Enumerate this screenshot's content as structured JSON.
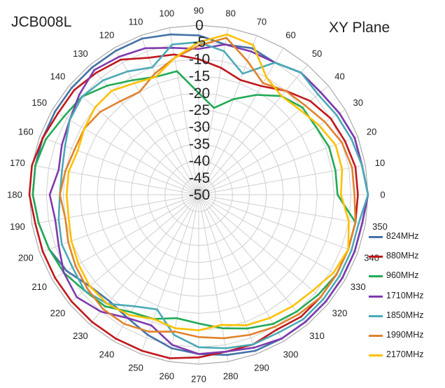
{
  "chart_data": {
    "type": "polar-line",
    "title_left": "JCB008L",
    "title_right": "XY  Plane",
    "radial_axis": {
      "min": -50,
      "max": 0,
      "ticks": [
        "0",
        "-5",
        "-10",
        "-15",
        "-20",
        "-25",
        "-30",
        "-35",
        "-40",
        "-45",
        "-50"
      ]
    },
    "angular_ticks": [
      "0",
      "10",
      "20",
      "30",
      "40",
      "50",
      "60",
      "70",
      "80",
      "90",
      "100",
      "110",
      "120",
      "130",
      "140",
      "150",
      "160",
      "170",
      "180",
      "190",
      "200",
      "210",
      "220",
      "230",
      "240",
      "250",
      "260",
      "270",
      "280",
      "290",
      "300",
      "310",
      "320",
      "330",
      "340",
      "350"
    ],
    "angles": [
      0,
      10,
      20,
      30,
      40,
      50,
      60,
      70,
      80,
      90,
      100,
      110,
      120,
      130,
      140,
      150,
      160,
      170,
      180,
      190,
      200,
      210,
      220,
      230,
      240,
      250,
      260,
      270,
      280,
      290,
      300,
      310,
      320,
      330,
      340,
      350
    ],
    "grid": true,
    "legend_position": "bottom-right",
    "series": [
      {
        "name": "824MHz",
        "color": "#4572A7",
        "values": [
          0,
          -1,
          -1,
          -2,
          -3,
          -3,
          -5,
          -4,
          -5,
          -3,
          -2,
          -1,
          -1,
          -1,
          -1,
          -1,
          -1,
          -1,
          -1,
          -2,
          -3,
          -5,
          -8,
          -9,
          -8,
          -6,
          -4,
          -3,
          -2,
          -1,
          -1,
          -1,
          -1,
          -1,
          -1,
          -1
        ]
      },
      {
        "name": "880MHz",
        "color": "#C0181C",
        "values": [
          -3,
          -3,
          -4,
          -5,
          -7,
          -10,
          -13,
          -14,
          -12,
          -10,
          -8,
          -7,
          -4,
          -3,
          -2,
          -2,
          -1,
          0,
          0,
          -1,
          -1,
          -1,
          -1,
          -1,
          -1,
          -1,
          -1,
          -2,
          -3,
          -3,
          -4,
          -3,
          -3,
          -3,
          -3,
          -3
        ]
      },
      {
        "name": "960MHz",
        "color": "#22AA55",
        "values": [
          -9,
          -9,
          -9,
          -10,
          -10,
          -12,
          -16,
          -20,
          -24,
          -20,
          -13,
          -13,
          -11,
          -8,
          -5,
          -4,
          -2,
          -1,
          -1,
          -2,
          -3,
          -4,
          -6,
          -7,
          -10,
          -11,
          -13,
          -12,
          -10,
          -8,
          -6,
          -5,
          -4,
          -3,
          -3,
          -3
        ]
      },
      {
        "name": "1710MHz",
        "color": "#7E3BAE",
        "values": [
          0,
          -1,
          -1,
          -2,
          -3,
          -3,
          -5,
          -5,
          -5,
          -7,
          -6,
          -4,
          -3,
          -2,
          -4,
          -6,
          -7,
          -8,
          -6,
          -7,
          -6,
          -4,
          -3,
          -5,
          -8,
          -9,
          -5,
          -3,
          -3,
          -2,
          -1,
          -1,
          -1,
          -1,
          -1,
          -1
        ]
      },
      {
        "name": "1850MHz",
        "color": "#4AAAB6",
        "values": [
          0,
          -1,
          -2,
          -3,
          -4,
          -3,
          -5,
          -12,
          -7,
          -5,
          -5,
          -10,
          -8,
          -6,
          -5,
          -6,
          -8,
          -9,
          -9,
          -8,
          -7,
          -7,
          -6,
          -8,
          -12,
          -14,
          -8,
          -5,
          -4,
          -3,
          -3,
          -2,
          -2,
          -2,
          -2,
          -2
        ]
      },
      {
        "name": "1990MHz",
        "color": "#E0832C",
        "values": [
          -4,
          -4,
          -5,
          -7,
          -9,
          -10,
          -12,
          -8,
          -3,
          -6,
          -9,
          -12,
          -15,
          -14,
          -12,
          -11,
          -11,
          -10,
          -9,
          -10,
          -9,
          -8,
          -7,
          -6,
          -6,
          -7,
          -9,
          -8,
          -7,
          -6,
          -5,
          -4,
          -3,
          -3,
          -3,
          -3
        ]
      },
      {
        "name": "2170MHz",
        "color": "#FFC000",
        "values": [
          -8,
          -7,
          -7,
          -9,
          -11,
          -12,
          -10,
          -3,
          -2,
          -5,
          -9,
          -13,
          -12,
          -10,
          -10,
          -11,
          -12,
          -11,
          -11,
          -11,
          -10,
          -9,
          -8,
          -8,
          -9,
          -11,
          -10,
          -10,
          -11,
          -9,
          -8,
          -7,
          -6,
          -4,
          -3,
          -5
        ]
      }
    ]
  }
}
